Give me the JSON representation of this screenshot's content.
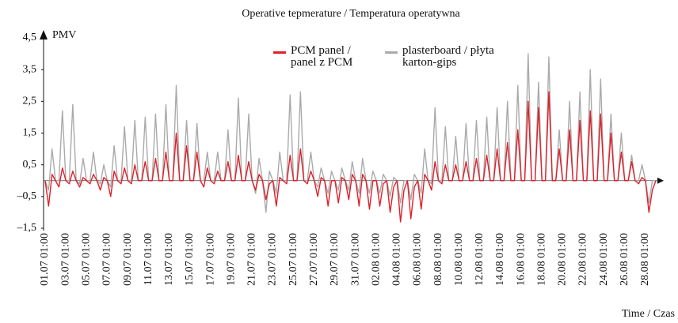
{
  "chart_data": {
    "type": "line",
    "title": "Operative tepmerature / Temperatura operatywna",
    "y_label": "PMV",
    "x_label": "Time / Czas",
    "ylim": [
      -1.5,
      4.5
    ],
    "yticks": [
      {
        "value": -1.5,
        "label": "–1,5"
      },
      {
        "value": -0.5,
        "label": "–0,5"
      },
      {
        "value": 0.5,
        "label": "0,5"
      },
      {
        "value": 1.5,
        "label": "1,5"
      },
      {
        "value": 2.5,
        "label": "2,5"
      },
      {
        "value": 3.5,
        "label": "3,5"
      },
      {
        "value": 4.5,
        "label": "4,5"
      }
    ],
    "categories": [
      "01.07 01:00",
      null,
      null,
      null,
      null,
      null,
      "03.07 01:00",
      null,
      null,
      null,
      null,
      null,
      "05.07 01:00",
      null,
      null,
      null,
      null,
      null,
      "07.07 01:00",
      null,
      null,
      null,
      null,
      null,
      "09.07 01:00",
      null,
      null,
      null,
      null,
      null,
      "11.07 01:00",
      null,
      null,
      null,
      null,
      null,
      "13.07 01:00",
      null,
      null,
      null,
      null,
      null,
      "15.07 01:00",
      null,
      null,
      null,
      null,
      null,
      "17.07 01:00",
      null,
      null,
      null,
      null,
      null,
      "19.07 01:00",
      null,
      null,
      null,
      null,
      null,
      "21.07 01:00",
      null,
      null,
      null,
      null,
      null,
      "23.07 01:00",
      null,
      null,
      null,
      null,
      null,
      "25.07 01:00",
      null,
      null,
      null,
      null,
      null,
      "27.07 01:00",
      null,
      null,
      null,
      null,
      null,
      "29.07 01:00",
      null,
      null,
      null,
      null,
      null,
      "31.07 01:00",
      null,
      null,
      null,
      null,
      null,
      "02.08 01:00",
      null,
      null,
      null,
      null,
      null,
      "04.08 01:00",
      null,
      null,
      null,
      null,
      null,
      "06.08 01:00",
      null,
      null,
      null,
      null,
      null,
      "08.08 01:00",
      null,
      null,
      null,
      null,
      null,
      "10.08 01:00",
      null,
      null,
      null,
      null,
      null,
      "12.08 01:00",
      null,
      null,
      null,
      null,
      null,
      "14.08 01:00",
      null,
      null,
      null,
      null,
      null,
      "16.08 01:00",
      null,
      null,
      null,
      null,
      null,
      "18.08 01:00",
      null,
      null,
      null,
      null,
      null,
      "20.08 01:00",
      null,
      null,
      null,
      null,
      null,
      "22.08 01:00",
      null,
      null,
      null,
      null,
      null,
      "24.08 01:00",
      null,
      null,
      null,
      null,
      null,
      "26.08 01:00",
      null,
      null,
      null,
      null,
      null,
      "28.08 01:00",
      null,
      null,
      null
    ],
    "series": [
      {
        "name": "PCM panel / panel z PCM",
        "color": "#e0202a",
        "values": [
          0,
          -0.8,
          0.2,
          0,
          -0.2,
          0.4,
          0,
          -0.1,
          0.3,
          0,
          -0.2,
          0.1,
          0,
          -0.1,
          0.2,
          0,
          -0.3,
          0.1,
          0,
          -0.5,
          0.3,
          0,
          -0.1,
          0.4,
          0,
          -0.1,
          0.5,
          0,
          0,
          0.6,
          0,
          0,
          0.7,
          0,
          0,
          0.9,
          0,
          0,
          1.5,
          0,
          0,
          1.1,
          0,
          0,
          0.9,
          0,
          -0.2,
          0.4,
          0,
          -0.1,
          0.3,
          0,
          0,
          0.6,
          0,
          0,
          0.8,
          0,
          0,
          0.6,
          0,
          -0.3,
          0.2,
          0,
          -0.6,
          -0.1,
          0,
          -0.8,
          0.1,
          0,
          -0.1,
          0.8,
          0,
          0,
          1.0,
          0,
          -0.1,
          0.3,
          0,
          -0.5,
          0.1,
          0,
          -0.8,
          0,
          0,
          -0.7,
          0.1,
          0,
          -0.6,
          0.2,
          0,
          -0.8,
          0.2,
          0,
          -0.9,
          0,
          0,
          -0.8,
          -0.1,
          0,
          -1.0,
          -0.2,
          0,
          -1.3,
          -0.3,
          0,
          -1.2,
          -0.2,
          0,
          -0.9,
          0.2,
          0,
          -0.3,
          0.6,
          0,
          -0.1,
          0.5,
          0,
          0,
          0.5,
          0,
          0,
          0.6,
          0,
          0,
          0.7,
          0,
          0,
          0.8,
          0,
          0,
          1.0,
          0,
          0,
          1.2,
          0,
          0,
          1.6,
          0,
          0,
          2.5,
          0,
          0,
          2.3,
          0,
          0,
          2.8,
          0,
          0,
          1.0,
          0,
          0,
          1.6,
          0,
          0,
          1.9,
          0,
          0,
          2.2,
          0,
          0,
          2.1,
          0,
          0,
          1.5,
          0,
          0,
          0.9,
          0,
          0,
          0.6,
          0,
          -0.1,
          0.1,
          0,
          -1.0,
          -0.3,
          0
        ]
      },
      {
        "name": "plasterboard / płyta karton-gips",
        "color": "#aaaaaa",
        "values": [
          0,
          -0.3,
          1.0,
          0,
          0,
          2.2,
          0,
          0,
          2.4,
          0,
          -0.1,
          0.7,
          0,
          0,
          0.9,
          0,
          -0.1,
          0.5,
          0,
          -0.2,
          1.1,
          0,
          0,
          1.7,
          0,
          0,
          1.9,
          0,
          0,
          2.0,
          0,
          0,
          2.1,
          0,
          0,
          2.4,
          0,
          0,
          3.0,
          0,
          0,
          1.9,
          0,
          0,
          1.8,
          0,
          0,
          0.9,
          0,
          0,
          0.9,
          0,
          0,
          1.6,
          0,
          0,
          2.6,
          0,
          0,
          2.1,
          0,
          -0.4,
          0.7,
          0,
          -1.0,
          0.3,
          0,
          -0.4,
          0.9,
          0,
          0,
          2.7,
          0,
          0,
          2.8,
          0,
          0,
          0.9,
          0,
          -0.2,
          0.4,
          0,
          -0.4,
          0.3,
          0,
          -0.3,
          0.4,
          0,
          -0.3,
          0.6,
          0,
          -0.4,
          0.7,
          0,
          -0.4,
          0.3,
          0,
          -0.4,
          0.2,
          0,
          -0.5,
          0.1,
          0,
          -0.7,
          0,
          0,
          -0.6,
          0.2,
          0,
          -0.4,
          1.0,
          0,
          -0.1,
          2.3,
          0,
          0,
          1.7,
          0,
          0,
          1.4,
          0,
          0,
          1.8,
          0,
          0,
          1.9,
          0,
          0,
          2.0,
          0,
          0,
          2.3,
          0,
          0,
          2.5,
          0,
          0,
          3.0,
          0,
          0,
          4.0,
          0,
          0,
          3.1,
          0,
          0,
          3.9,
          0,
          0,
          1.6,
          0,
          0,
          2.5,
          0,
          0,
          2.8,
          0,
          0,
          3.5,
          0,
          0,
          3.2,
          0,
          0,
          2.1,
          0,
          0,
          1.5,
          0,
          0,
          0.8,
          0,
          0,
          0.5,
          0,
          -0.7,
          0,
          0
        ]
      }
    ]
  }
}
